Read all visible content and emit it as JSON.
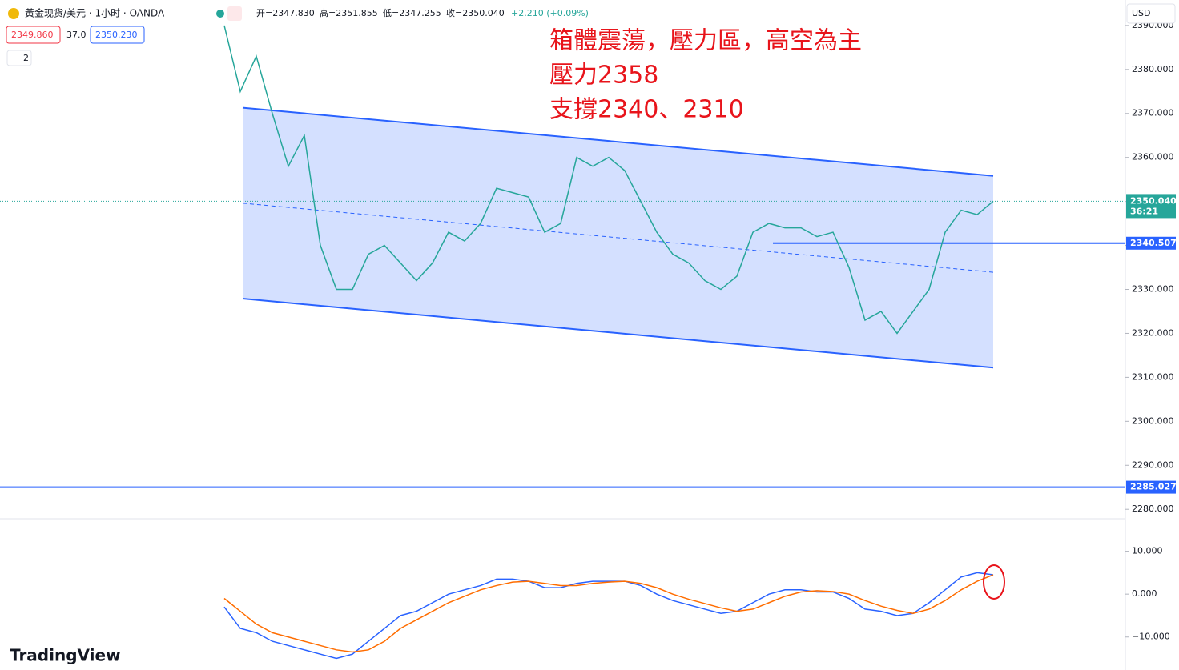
{
  "header": {
    "symbol": "黃金现货/美元 · 1小时 · OANDA",
    "open": "开=2347.830",
    "high": "高=2351.855",
    "low": "低=2347.255",
    "close": "收=2350.040",
    "change": "+2.210 (+0.09%)",
    "bid": "2349.860",
    "spread": "37.0",
    "ask": "2350.230",
    "collapse": "2",
    "currency": "USD"
  },
  "price_labels": {
    "last": "2350.040",
    "countdown": "36:21",
    "line_1": "2340.507",
    "line_2": "2285.027"
  },
  "watermark": "TradingView",
  "chart_data": [
    {
      "type": "line",
      "annotations": [
        "箱體震蕩，壓力區，高空為主",
        "壓力2358",
        "支撐2340、2310"
      ],
      "x": [
        0,
        1,
        2,
        3,
        4,
        5,
        6,
        7,
        8,
        9,
        10,
        11,
        12,
        13,
        14,
        15,
        16,
        17,
        18,
        19,
        20,
        21,
        22,
        23,
        24,
        25,
        26,
        27,
        28,
        29,
        30,
        31,
        32,
        33,
        34,
        35,
        36,
        37,
        38,
        39,
        40,
        41,
        42,
        43,
        44,
        45,
        46,
        47,
        48
      ],
      "series": [
        {
          "color": "#26a69a",
          "values": [
            2390,
            2375,
            2383,
            2370,
            2358,
            2365,
            2340,
            2330,
            2330,
            2338,
            2340,
            2336,
            2332,
            2336,
            2343,
            2341,
            2345,
            2353,
            2352,
            2351,
            2343,
            2345,
            2360,
            2358,
            2360,
            2357,
            2350,
            2343,
            2338,
            2336,
            2332,
            2330,
            2333,
            2343,
            2345,
            2344,
            2344,
            2342,
            2343,
            2335,
            2323,
            2325,
            2320,
            2325,
            2330,
            2343,
            2348,
            2347,
            2350.04
          ]
        }
      ],
      "channel": {
        "x": [
          1.15,
          48
        ],
        "upper": [
          2371.3,
          2355.8
        ],
        "mid": [
          2349.6,
          2333.9
        ],
        "lower": [
          2327.9,
          2312.2
        ],
        "color": "#2962ff"
      },
      "hlines": [
        2340.507,
        2285.027
      ],
      "last": 2350.04,
      "xlim": [
        -14,
        56.25
      ],
      "ylim": [
        2278.4,
        2395.8
      ],
      "yticks": [
        {
          "value": 2280,
          "label": "2280.000"
        },
        {
          "value": 2290,
          "label": "2290.000"
        },
        {
          "value": 2300,
          "label": "2300.000"
        },
        {
          "value": 2310,
          "label": "2310.000"
        },
        {
          "value": 2320,
          "label": "2320.000"
        },
        {
          "value": 2330,
          "label": "2330.000"
        },
        {
          "value": 2340,
          "label": "2340.000"
        },
        {
          "value": 2350,
          "label": "2350.000"
        },
        {
          "value": 2360,
          "label": "2360.000"
        },
        {
          "value": 2370,
          "label": "2370.000"
        },
        {
          "value": 2380,
          "label": "2380.000"
        },
        {
          "value": 2390,
          "label": "2390.000"
        }
      ]
    },
    {
      "type": "line",
      "x": [
        0,
        1,
        2,
        3,
        4,
        5,
        6,
        7,
        8,
        9,
        10,
        11,
        12,
        13,
        14,
        15,
        16,
        17,
        18,
        19,
        20,
        21,
        22,
        23,
        24,
        25,
        26,
        27,
        28,
        29,
        30,
        31,
        32,
        33,
        34,
        35,
        36,
        37,
        38,
        39,
        40,
        41,
        42,
        43,
        44,
        45,
        46,
        47,
        48
      ],
      "series": [
        {
          "color": "#2962ff",
          "values": [
            -3,
            -8,
            -9,
            -11,
            -12,
            -13,
            -14,
            -15,
            -14,
            -11,
            -8,
            -5,
            -4,
            -2,
            0,
            1,
            2,
            3.5,
            3.5,
            3,
            1.5,
            1.5,
            2.5,
            3,
            3,
            3,
            2,
            0,
            -1.5,
            -2.5,
            -3.5,
            -4.5,
            -4,
            -2,
            0,
            1,
            1,
            0.5,
            0.5,
            -1,
            -3.5,
            -4,
            -5,
            -4.5,
            -2,
            1,
            4,
            5,
            4.5
          ]
        },
        {
          "color": "#ff6d00",
          "values": [
            -1,
            -4,
            -7,
            -9,
            -10,
            -11,
            -12,
            -13,
            -13.5,
            -13,
            -11,
            -8,
            -6,
            -4,
            -2,
            -0.5,
            1,
            2,
            2.8,
            3,
            2.5,
            2,
            2,
            2.5,
            2.8,
            3,
            2.5,
            1.5,
            0,
            -1.2,
            -2.2,
            -3.2,
            -4,
            -3.5,
            -2,
            -0.5,
            0.5,
            0.8,
            0.6,
            0,
            -1.5,
            -2.8,
            -3.8,
            -4.5,
            -3.5,
            -1.5,
            1,
            3,
            4.5
          ]
        }
      ],
      "xlim": [
        -14,
        56.25
      ],
      "ylim": [
        -17.7,
        17.2
      ],
      "yticks": [
        {
          "value": -10,
          "label": "−10.000"
        },
        {
          "value": 0,
          "label": "0.000"
        },
        {
          "value": 10,
          "label": "10.000"
        }
      ]
    }
  ]
}
